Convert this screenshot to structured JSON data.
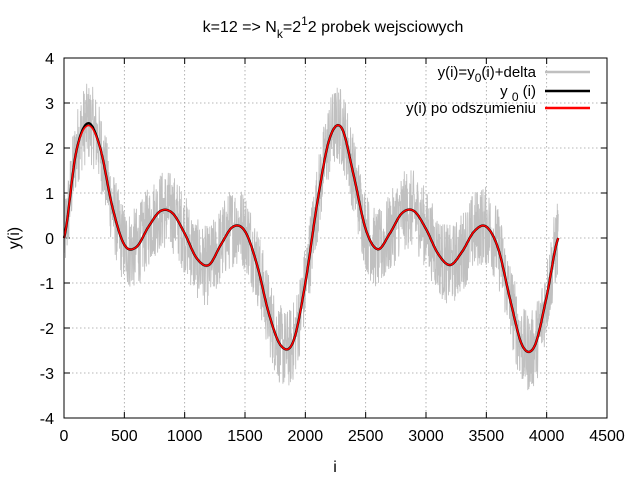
{
  "chart_data": {
    "type": "line",
    "title": "k=12 => N_k=2^12 probek wejsciowych",
    "title_parts": {
      "p1": "k=12 => N",
      "sub_k": "k",
      "p2": "=2",
      "sup_1": "1",
      "p3": "2 probek wejsciowych"
    },
    "xlabel": "i",
    "ylabel": "y(i)",
    "xlim": [
      0,
      4500
    ],
    "ylim": [
      -4,
      4
    ],
    "x_ticks": [
      0,
      500,
      1000,
      1500,
      2000,
      2500,
      3000,
      3500,
      4000,
      4500
    ],
    "y_ticks": [
      -4,
      -3,
      -2,
      -1,
      0,
      1,
      2,
      3,
      4
    ],
    "grid": true,
    "legend_position": "top-right",
    "n_samples": 4096,
    "series": [
      {
        "name": "y(i)=y_0(i)+delta",
        "legend_parts": {
          "a": "y(i)=y",
          "sub": "0",
          "b": "(i)+delta"
        },
        "color": "#c0c0c0",
        "kind": "noisy",
        "noise_amplitude": 0.9,
        "x": [
          0,
          100,
          200,
          300,
          400,
          500,
          600,
          700,
          800,
          900,
          1000,
          1100,
          1200,
          1300,
          1400,
          1500,
          1600,
          1700,
          1800,
          1900,
          2000,
          2100,
          2200,
          2300,
          2400,
          2500,
          2600,
          2700,
          2800,
          2900,
          3000,
          3100,
          3200,
          3300,
          3400,
          3500,
          3600,
          3700,
          3800,
          3900,
          4000,
          4096
        ],
        "y": [
          0.0,
          1.9,
          2.55,
          2.0,
          0.7,
          -0.15,
          -0.2,
          0.25,
          0.6,
          0.55,
          0.1,
          -0.45,
          -0.6,
          -0.15,
          0.25,
          0.15,
          -0.6,
          -1.7,
          -2.4,
          -2.3,
          -1.0,
          0.8,
          2.2,
          2.45,
          1.4,
          0.2,
          -0.25,
          0.1,
          0.55,
          0.6,
          0.2,
          -0.35,
          -0.6,
          -0.3,
          0.15,
          0.25,
          -0.25,
          -1.4,
          -2.4,
          -2.4,
          -1.3,
          0.0
        ]
      },
      {
        "name": "y_0(i)",
        "legend_parts": {
          "a": "y ",
          "sub": "0",
          "b": " (i)"
        },
        "color": "#000000",
        "kind": "line",
        "x": [
          0,
          100,
          200,
          300,
          400,
          500,
          600,
          700,
          800,
          900,
          1000,
          1100,
          1200,
          1300,
          1400,
          1500,
          1600,
          1700,
          1800,
          1900,
          2000,
          2100,
          2200,
          2300,
          2400,
          2500,
          2600,
          2700,
          2800,
          2900,
          3000,
          3100,
          3200,
          3300,
          3400,
          3500,
          3600,
          3700,
          3800,
          3900,
          4000,
          4096
        ],
        "y": [
          0.0,
          1.9,
          2.55,
          2.0,
          0.7,
          -0.15,
          -0.2,
          0.25,
          0.6,
          0.55,
          0.1,
          -0.45,
          -0.6,
          -0.15,
          0.25,
          0.15,
          -0.6,
          -1.7,
          -2.4,
          -2.3,
          -1.0,
          0.8,
          2.2,
          2.45,
          1.4,
          0.2,
          -0.25,
          0.1,
          0.55,
          0.6,
          0.2,
          -0.35,
          -0.6,
          -0.3,
          0.15,
          0.25,
          -0.25,
          -1.4,
          -2.4,
          -2.4,
          -1.3,
          0.0
        ]
      },
      {
        "name": "y(i) po odszumieniu",
        "legend_parts": {
          "a": "y(i) po odszumieniu",
          "sub": "",
          "b": ""
        },
        "color": "#ff0000",
        "kind": "line",
        "x": [
          0,
          100,
          200,
          300,
          400,
          500,
          600,
          700,
          800,
          900,
          1000,
          1100,
          1200,
          1300,
          1400,
          1500,
          1600,
          1700,
          1800,
          1900,
          2000,
          2100,
          2200,
          2300,
          2400,
          2500,
          2600,
          2700,
          2800,
          2900,
          3000,
          3100,
          3200,
          3300,
          3400,
          3500,
          3600,
          3700,
          3800,
          3900,
          4000,
          4096
        ],
        "y": [
          0.0,
          1.9,
          2.5,
          2.0,
          0.7,
          -0.15,
          -0.2,
          0.25,
          0.6,
          0.55,
          0.1,
          -0.45,
          -0.6,
          -0.15,
          0.25,
          0.15,
          -0.6,
          -1.7,
          -2.4,
          -2.3,
          -1.0,
          0.8,
          2.2,
          2.45,
          1.4,
          0.2,
          -0.25,
          0.1,
          0.55,
          0.6,
          0.2,
          -0.35,
          -0.6,
          -0.3,
          0.15,
          0.25,
          -0.25,
          -1.4,
          -2.4,
          -2.4,
          -1.3,
          0.0
        ]
      }
    ]
  }
}
